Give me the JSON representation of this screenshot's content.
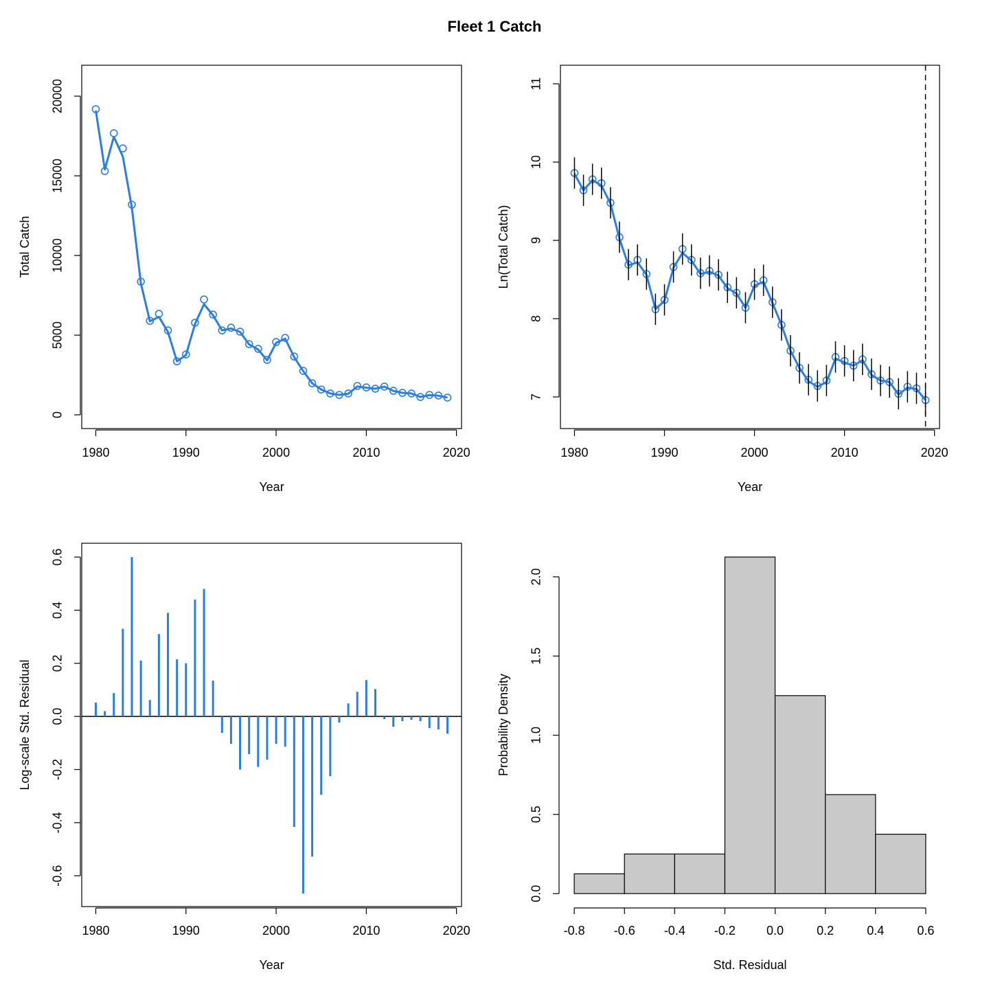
{
  "title": "Fleet 1 Catch",
  "chart_data": [
    {
      "type": "line",
      "xlabel": "Year",
      "ylabel": "Total Catch",
      "box": true,
      "x": [
        1980,
        1981,
        1982,
        1983,
        1984,
        1985,
        1986,
        1987,
        1988,
        1989,
        1990,
        1991,
        1992,
        1993,
        1994,
        1995,
        1996,
        1997,
        1998,
        1999,
        2000,
        2001,
        2002,
        2003,
        2004,
        2005,
        2006,
        2007,
        2008,
        2009,
        2010,
        2011,
        2012,
        2013,
        2014,
        2015,
        2016,
        2017,
        2018,
        2019
      ],
      "series": [
        {
          "color": "#2a7de1",
          "marker": "circle",
          "values": [
            19180,
            15300,
            17670,
            16720,
            13190,
            8360,
            5900,
            6340,
            5300,
            3360,
            3790,
            5780,
            7240,
            6290,
            5300,
            5470,
            5220,
            4440,
            4140,
            3450,
            4570,
            4830,
            3660,
            2760,
            1980,
            1590,
            1340,
            1250,
            1340,
            1810,
            1720,
            1640,
            1770,
            1510,
            1380,
            1340,
            1120,
            1250,
            1210,
            1080
          ]
        },
        {
          "color": "#2a7de1",
          "line_width": 3,
          "values": [
            19100,
            15400,
            17450,
            16200,
            13000,
            8250,
            5870,
            6150,
            5200,
            3360,
            3750,
            5700,
            6940,
            6250,
            5300,
            5420,
            5200,
            4420,
            4100,
            3420,
            4520,
            4780,
            3620,
            2750,
            1980,
            1590,
            1340,
            1250,
            1320,
            1780,
            1700,
            1640,
            1770,
            1500,
            1380,
            1340,
            1120,
            1240,
            1200,
            1080
          ]
        }
      ],
      "xlim": [
        1978.44,
        2020.56
      ],
      "xticks": [
        1980,
        1990,
        2000,
        2010,
        2020
      ],
      "ylim": [
        -862,
        21940
      ],
      "yticks": [
        0,
        5000,
        10000,
        15000,
        20000
      ]
    },
    {
      "type": "line",
      "xlabel": "Year",
      "ylabel": "Ln(Total Catch)",
      "box": true,
      "x": [
        1980,
        1981,
        1982,
        1983,
        1984,
        1985,
        1986,
        1987,
        1988,
        1989,
        1990,
        1991,
        1992,
        1993,
        1994,
        1995,
        1996,
        1997,
        1998,
        1999,
        2000,
        2001,
        2002,
        2003,
        2004,
        2005,
        2006,
        2007,
        2008,
        2009,
        2010,
        2011,
        2012,
        2013,
        2014,
        2015,
        2016,
        2017,
        2018,
        2019
      ],
      "series": [
        {
          "color": "#2a7de1",
          "marker": "circle",
          "error": 0.2,
          "error_color": "#000000",
          "values": [
            9.86,
            9.64,
            9.78,
            9.73,
            9.48,
            9.04,
            8.69,
            8.75,
            8.57,
            8.12,
            8.24,
            8.66,
            8.89,
            8.75,
            8.58,
            8.61,
            8.56,
            8.4,
            8.33,
            8.14,
            8.44,
            8.49,
            8.21,
            7.92,
            7.59,
            7.37,
            7.22,
            7.14,
            7.21,
            7.51,
            7.46,
            7.4,
            7.48,
            7.29,
            7.21,
            7.19,
            7.04,
            7.13,
            7.11,
            6.96
          ]
        },
        {
          "color": "#2a7de1",
          "line_width": 3,
          "values": [
            9.85,
            9.64,
            9.77,
            9.7,
            9.47,
            9.02,
            8.68,
            8.72,
            8.56,
            8.12,
            8.23,
            8.65,
            8.84,
            8.74,
            8.57,
            8.6,
            8.55,
            8.39,
            8.32,
            8.14,
            8.42,
            8.47,
            8.2,
            7.92,
            7.59,
            7.37,
            7.2,
            7.13,
            7.19,
            7.49,
            7.44,
            7.4,
            7.47,
            7.28,
            7.21,
            7.19,
            7.03,
            7.12,
            7.1,
            6.96
          ]
        }
      ],
      "vline": 2019,
      "vline_dash": true,
      "xlim": [
        1978.44,
        2020.56
      ],
      "xticks": [
        1980,
        1990,
        2000,
        2010,
        2020
      ],
      "ylim": [
        6.596,
        11.237
      ],
      "yticks": [
        7,
        8,
        9,
        10,
        11
      ]
    },
    {
      "type": "h",
      "xlabel": "Year",
      "ylabel": "Log-scale Std. Residual",
      "box": true,
      "color": "#2a7de1",
      "hline": 0,
      "x": [
        1980,
        1981,
        1982,
        1983,
        1984,
        1985,
        1986,
        1987,
        1988,
        1989,
        1990,
        1991,
        1992,
        1993,
        1994,
        1995,
        1996,
        1997,
        1998,
        1999,
        2000,
        2001,
        2002,
        2003,
        2004,
        2005,
        2006,
        2007,
        2008,
        2009,
        2010,
        2011,
        2012,
        2013,
        2014,
        2015,
        2016,
        2017,
        2018,
        2019
      ],
      "values": [
        0.052,
        0.02,
        0.088,
        0.33,
        0.6,
        0.21,
        0.062,
        0.31,
        0.39,
        0.215,
        0.2,
        0.44,
        0.48,
        0.135,
        -0.062,
        -0.103,
        -0.2,
        -0.142,
        -0.19,
        -0.163,
        -0.103,
        -0.114,
        -0.416,
        -0.667,
        -0.528,
        -0.295,
        -0.225,
        -0.023,
        0.049,
        0.093,
        0.137,
        0.103,
        -0.01,
        -0.039,
        -0.018,
        -0.013,
        -0.018,
        -0.044,
        -0.049,
        -0.065
      ],
      "xlim": [
        1978.44,
        2020.56
      ],
      "xticks": [
        1980,
        1990,
        2000,
        2010,
        2020
      ],
      "ylim": [
        -0.716,
        0.652
      ],
      "yticks": [
        -0.6,
        -0.4,
        -0.2,
        {
          "value": 0,
          "label": "0.0"
        },
        0.2,
        0.4,
        0.6
      ]
    },
    {
      "type": "histogram",
      "xlabel": "Std. Residual",
      "ylabel": "Probability Density",
      "box": false,
      "color": "#c9c9c9",
      "bins": [
        -0.8,
        -0.6,
        -0.4,
        -0.2,
        0,
        0.2,
        0.4,
        0.6
      ],
      "values": [
        0.125,
        0.25,
        0.25,
        2.125,
        1.25,
        0.625,
        0.375
      ],
      "xlim": [
        -0.855,
        0.655
      ],
      "xticks": [
        -0.8,
        -0.6,
        -0.4,
        -0.2,
        {
          "value": 0,
          "label": "0.0"
        },
        0.2,
        0.4,
        0.6
      ],
      "ylim": [
        -0.082,
        2.212
      ],
      "yticks": [
        {
          "value": 0,
          "label": "0.0"
        },
        0.5,
        {
          "value": 1,
          "label": "1.0"
        },
        1.5,
        {
          "value": 2,
          "label": "2.0"
        }
      ]
    }
  ]
}
